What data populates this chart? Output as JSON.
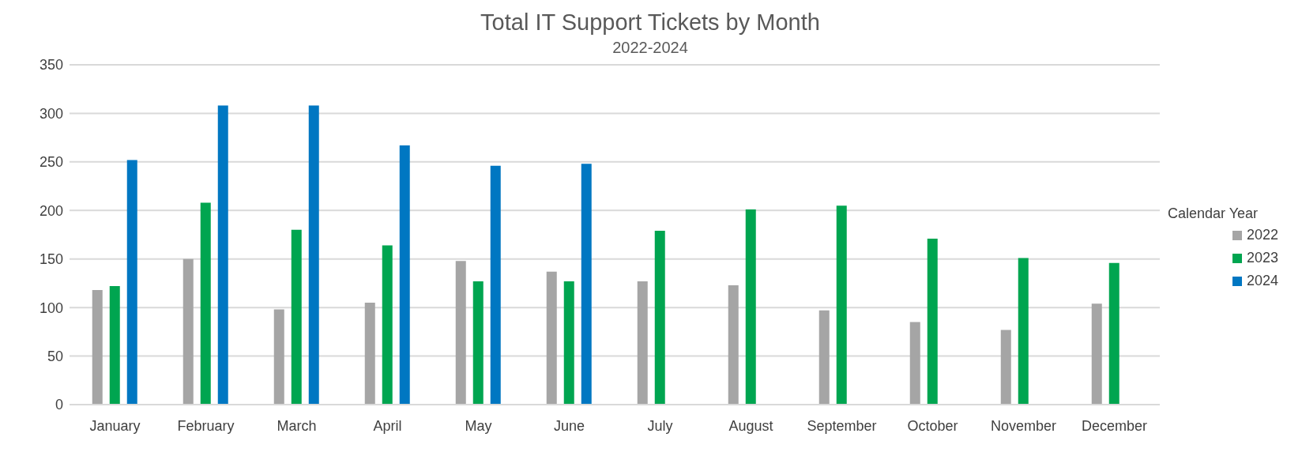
{
  "chart_data": {
    "type": "bar",
    "title": "Total IT Support Tickets by Month",
    "subtitle": "2022-2024",
    "categories": [
      "January",
      "February",
      "March",
      "April",
      "May",
      "June",
      "July",
      "August",
      "September",
      "October",
      "November",
      "December"
    ],
    "series": [
      {
        "name": "2022",
        "color": "#a5a5a5",
        "values": [
          118,
          150,
          98,
          105,
          148,
          137,
          127,
          123,
          97,
          85,
          77,
          104
        ]
      },
      {
        "name": "2023",
        "color": "#00a550",
        "values": [
          122,
          208,
          180,
          164,
          127,
          127,
          179,
          201,
          205,
          171,
          151,
          146
        ]
      },
      {
        "name": "2024",
        "color": "#0077c2",
        "values": [
          252,
          308,
          308,
          267,
          246,
          248,
          null,
          null,
          null,
          null,
          null,
          null
        ]
      }
    ],
    "legend_title": "Calendar Year",
    "legend": "right",
    "ylim": [
      0,
      350
    ],
    "yticks": [
      0,
      50,
      100,
      150,
      200,
      250,
      300,
      350
    ],
    "grid": "y"
  }
}
